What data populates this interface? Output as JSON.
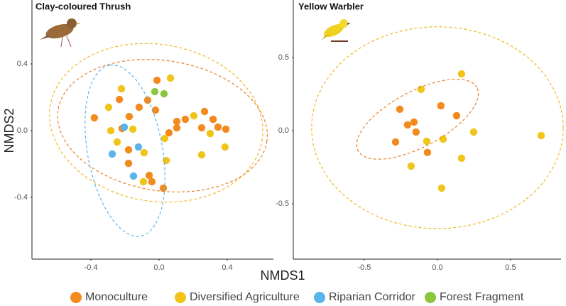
{
  "chart_data": [
    {
      "type": "scatter",
      "title": "Clay-coloured Thrush",
      "xlabel": "NMDS1",
      "ylabel": "NMDS2",
      "xlim": [
        -0.746,
        0.671
      ],
      "ylim": [
        -0.77,
        0.783
      ],
      "xticks": [
        -0.4,
        {
          "value": 0,
          "label": "0.0"
        },
        0.4
      ],
      "yticks": [
        -0.4,
        {
          "value": 0,
          "label": "0.0"
        },
        0.4
      ],
      "series": [
        {
          "name": "Monoculture",
          "color": "#f28a1e",
          "x": [
            -0.38,
            -0.233,
            -0.067,
            -0.012,
            -0.117,
            -0.021,
            -0.175,
            -0.217,
            -0.179,
            -0.179,
            -0.058,
            -0.042,
            0.025,
            0.058,
            0.104,
            0.104,
            0.154,
            0.267,
            0.317,
            0.346,
            0.392,
            0.25
          ],
          "values": [
            0.077,
            0.187,
            0.183,
            0.302,
            0.14,
            0.123,
            0.085,
            0.013,
            -0.115,
            -0.196,
            -0.268,
            -0.306,
            -0.345,
            -0.013,
            0.055,
            0.017,
            0.068,
            0.115,
            0.068,
            0.021,
            0.009,
            0.017
          ]
        },
        {
          "name": "Diversified Agriculture",
          "color": "#f0c419",
          "x": [
            -0.221,
            -0.296,
            -0.283,
            -0.154,
            -0.088,
            -0.246,
            -0.092,
            0.067,
            0.033,
            0.042,
            0.204,
            0.3,
            0.387,
            0.25
          ],
          "values": [
            0.251,
            0.14,
            0.0,
            0.009,
            -0.132,
            -0.068,
            -0.306,
            0.315,
            -0.047,
            -0.179,
            0.089,
            -0.017,
            -0.098,
            -0.145
          ]
        },
        {
          "name": "Riparian Corridor",
          "color": "#5ab4ec",
          "x": [
            -0.204,
            -0.275,
            -0.121,
            -0.15
          ],
          "values": [
            0.021,
            -0.14,
            -0.098,
            -0.272
          ]
        },
        {
          "name": "Forest Fragment",
          "color": "#8cc63f",
          "x": [
            -0.025,
            0.029
          ],
          "values": [
            0.234,
            0.221
          ]
        }
      ],
      "ellipses": [
        {
          "color": "#f2b722",
          "center": [
            -0.017,
            0.047
          ],
          "radii": [
            0.63,
            0.47
          ],
          "angle": -10
        },
        {
          "color": "#e8822a",
          "center": [
            0.02,
            0.03
          ],
          "radii": [
            0.62,
            0.39
          ],
          "angle": -9
        },
        {
          "color": "#5ab4ec",
          "center": [
            -0.2,
            -0.12
          ],
          "radii": [
            0.52,
            0.22
          ],
          "angle": 100
        }
      ]
    },
    {
      "type": "scatter",
      "title": "Yellow Warbler",
      "xlim": [
        -0.985,
        0.845
      ],
      "ylim": [
        -0.879,
        0.893
      ],
      "xticks": [
        -0.5,
        {
          "value": 0,
          "label": "0.0"
        },
        0.5
      ],
      "yticks": [
        -0.5,
        {
          "value": 0,
          "label": "0.0"
        },
        0.5
      ],
      "series": [
        {
          "color": "#f28a1e",
          "x": [
            -0.286,
            -0.257,
            -0.204,
            -0.16,
            -0.146,
            -0.068,
            0.024,
            0.131
          ],
          "values": [
            -0.078,
            0.146,
            0.039,
            0.058,
            -0.01,
            -0.15,
            0.17,
            0.102
          ]
        },
        {
          "color": "#f0c419",
          "x": [
            -0.112,
            -0.18,
            -0.073,
            0.039,
            0.029,
            0.165,
            0.165,
            0.248,
            0.709
          ],
          "values": [
            0.282,
            -0.243,
            -0.073,
            -0.058,
            -0.393,
            0.388,
            -0.189,
            -0.01,
            -0.034
          ]
        }
      ],
      "ellipses": [
        {
          "color": "#f2b722",
          "center": [
            0.0,
            0.02
          ],
          "radii": [
            0.86,
            0.69
          ],
          "angle": 0
        },
        {
          "color": "#e8822a",
          "center": [
            -0.136,
            0.078
          ],
          "radii": [
            0.46,
            0.19
          ],
          "angle": 28
        }
      ]
    }
  ]
}
